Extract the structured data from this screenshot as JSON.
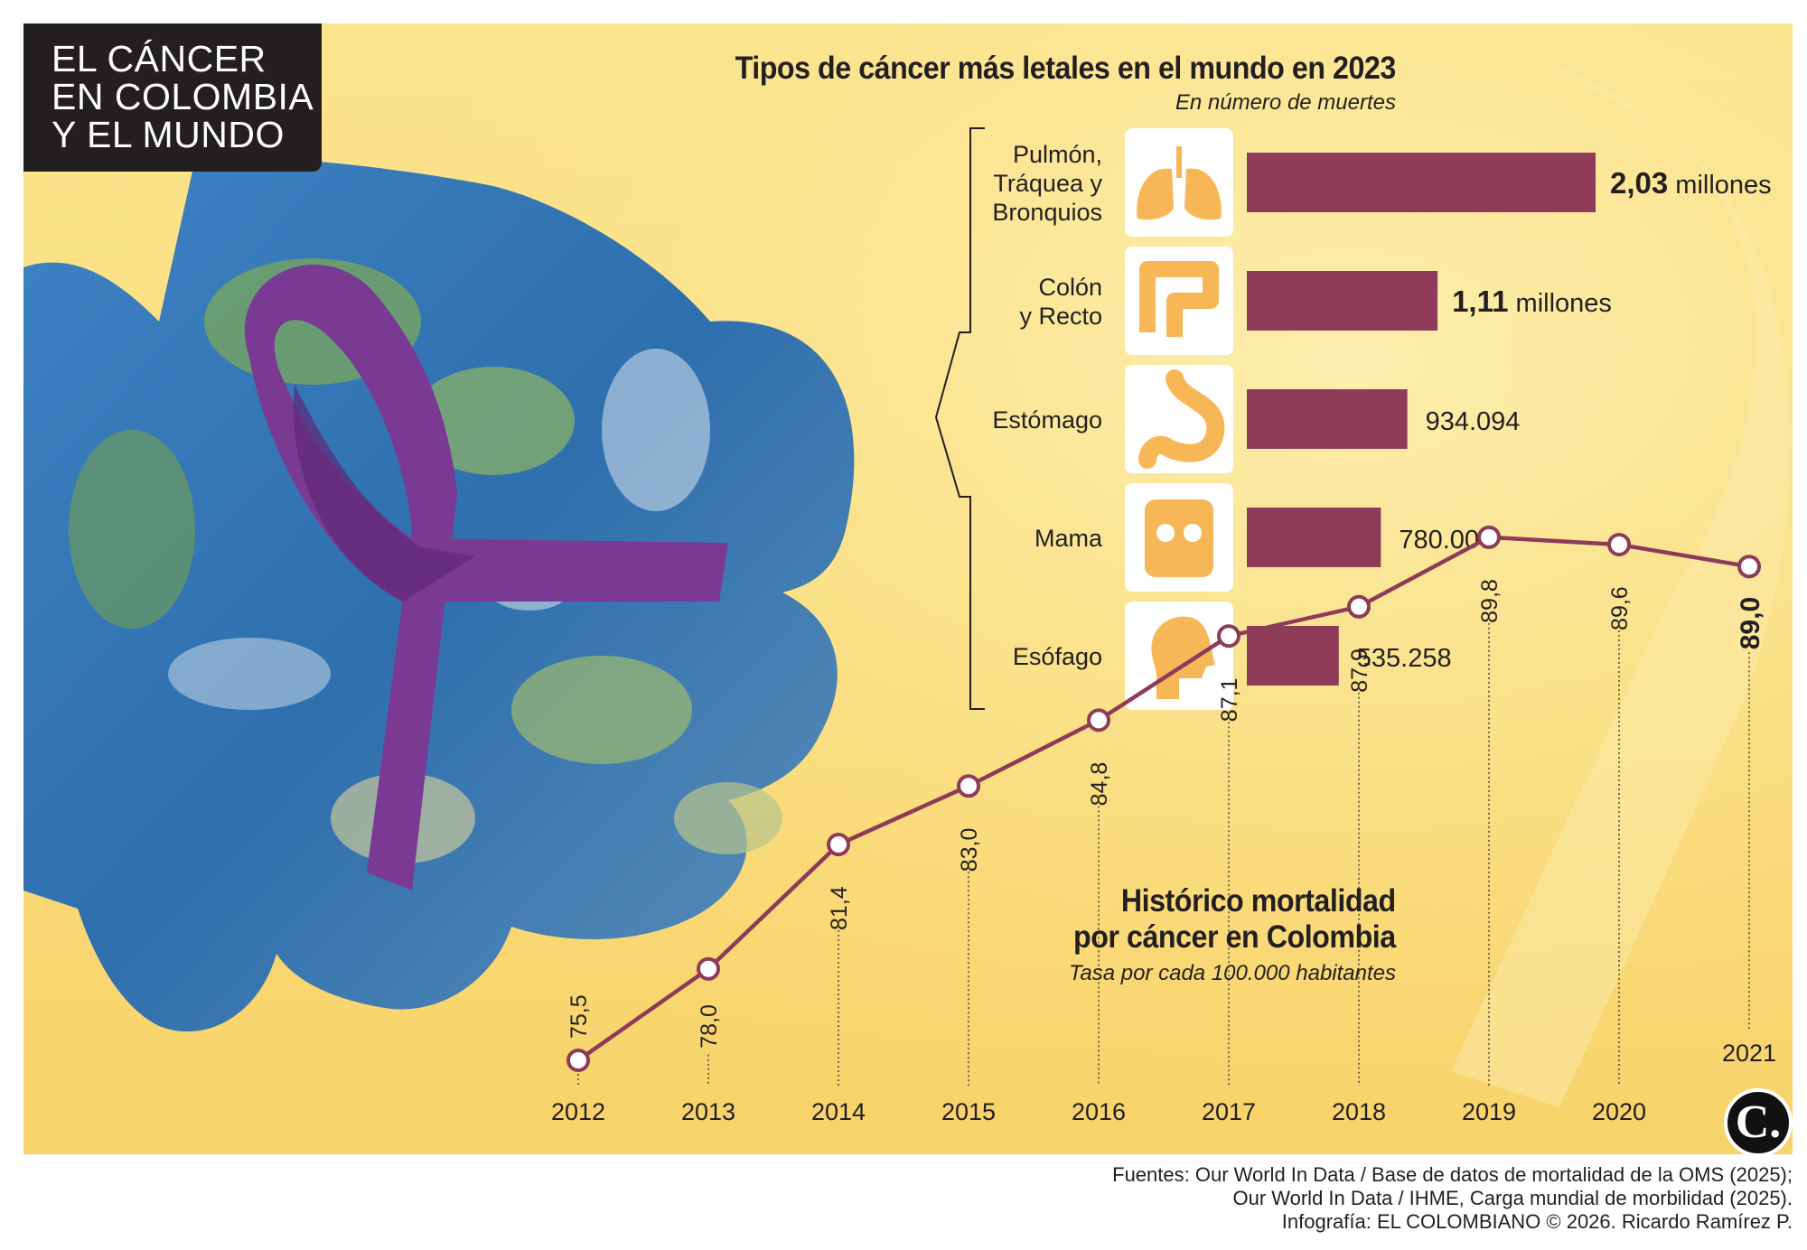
{
  "header": {
    "lines": [
      "EL CÁNCER",
      "EN COLOMBIA",
      "Y EL MUNDO"
    ]
  },
  "colors": {
    "background": "#fbe08a",
    "bar": "#8e3a59",
    "line": "#8e3a59",
    "icon_bg": "#ffffff",
    "icon": "#f7b757",
    "title_box": "#231f20"
  },
  "chart_data": [
    {
      "type": "bar",
      "orientation": "horizontal",
      "title": "Tipos de cáncer más letales en el mundo en 2023",
      "subtitle": "En número de muertes",
      "categories": [
        [
          "Pulmón,",
          "Tráquea y",
          "Bronquios"
        ],
        [
          "Colón",
          "y Recto"
        ],
        [
          "Estómago"
        ],
        [
          "Mama"
        ],
        [
          "Esófago"
        ]
      ],
      "icons": [
        "lungs-icon",
        "intestine-icon",
        "stomach-icon",
        "breast-icon",
        "throat-icon"
      ],
      "values": [
        2030000,
        1110000,
        934094,
        780000,
        535258
      ],
      "value_labels": [
        {
          "number": "2,03",
          "unit": "millones"
        },
        {
          "number": "1,11",
          "unit": "millones"
        },
        {
          "number": "934.094",
          "unit": ""
        },
        {
          "number": "780.000",
          "unit": ""
        },
        {
          "number": "535.258",
          "unit": ""
        }
      ]
    },
    {
      "type": "line",
      "title_lines": [
        "Histórico mortalidad",
        "por cáncer en Colombia"
      ],
      "subtitle": "Tasa por cada 100.000 habitantes",
      "x": [
        "2012",
        "2013",
        "2014",
        "2015",
        "2016",
        "2017",
        "2018",
        "2019",
        "2020",
        "2021"
      ],
      "y": [
        75.5,
        78.0,
        81.4,
        83.0,
        84.8,
        87.1,
        87.9,
        89.8,
        89.6,
        89.0
      ],
      "y_labels": [
        "75,5",
        "78,0",
        "81,4",
        "83,0",
        "84,8",
        "87,1",
        "87,9",
        "89,8",
        "89,6",
        "89,0"
      ],
      "highlight_last": true
    }
  ],
  "footer": {
    "lines": [
      "Fuentes: Our World In Data / Base de datos de mortalidad de la OMS (2025);",
      "Our World In Data / IHME, Carga mundial de morbilidad (2025).",
      "Infografía: EL COLOMBIANO © 2026. Ricardo Ramírez P."
    ],
    "logo": "C."
  }
}
